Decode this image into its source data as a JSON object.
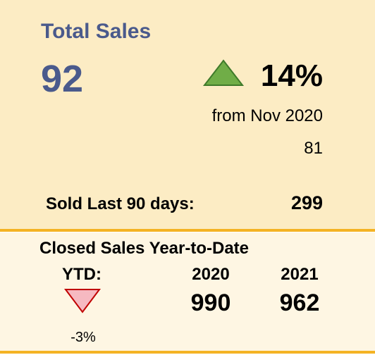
{
  "top": {
    "title": "Total Sales",
    "value": 92,
    "change": "14%",
    "from": "from Nov 2020",
    "previous": 81,
    "sold_label": "Sold Last 90 days:",
    "sold_value": 299
  },
  "bottom": {
    "title": "Closed Sales Year-to-Date",
    "ytd_label": "YTD:",
    "ytd_change": "-3%",
    "years": [
      2020,
      2021
    ],
    "values": [
      990,
      962
    ]
  }
}
